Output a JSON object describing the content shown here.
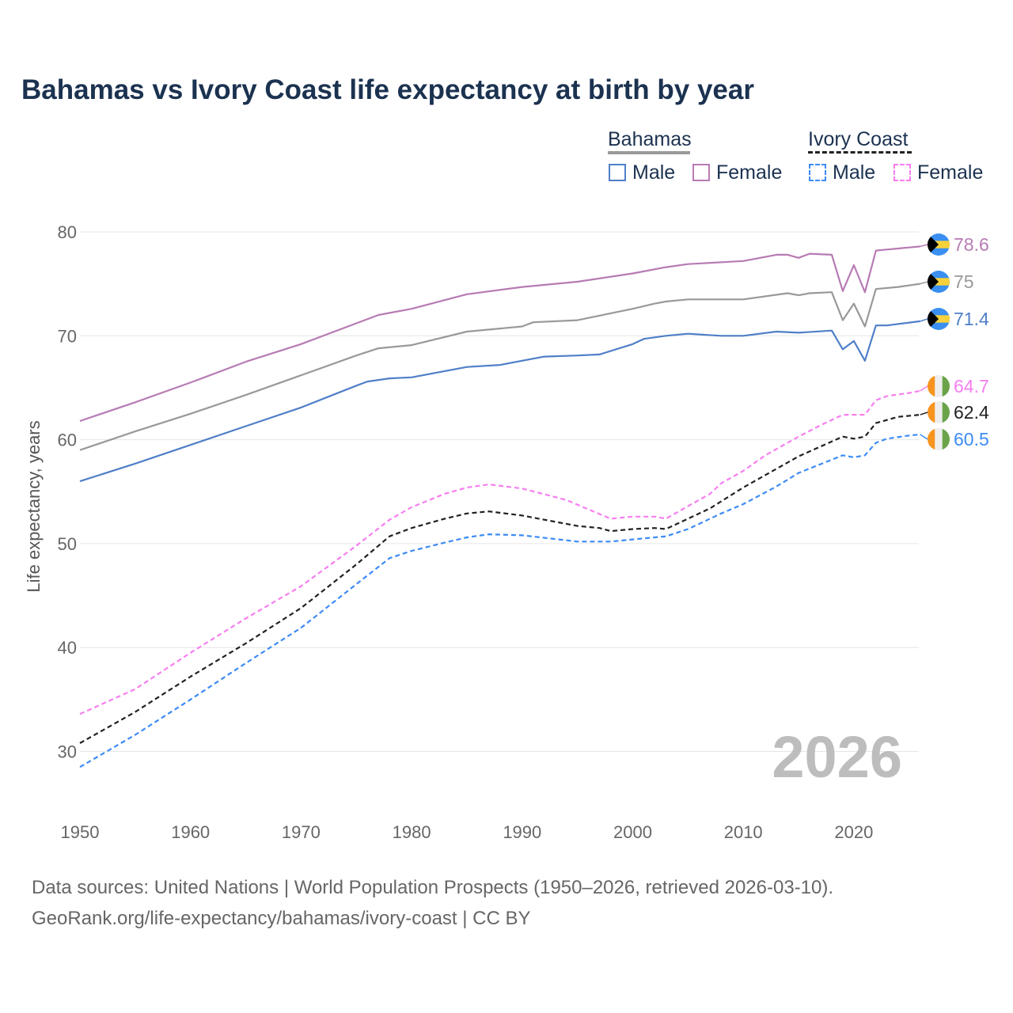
{
  "title": "Bahamas vs Ivory Coast life expectancy at birth by year",
  "legend": {
    "groups": [
      {
        "name": "Bahamas",
        "items": [
          "Male",
          "Female"
        ]
      },
      {
        "name": "Ivory Coast",
        "items": [
          "Male",
          "Female"
        ]
      }
    ]
  },
  "year_watermark": "2026",
  "footer": {
    "line1": "Data sources: United Nations | World Population Prospects (1950–2026, retrieved 2026-03-10).",
    "line2": "GeoRank.org/life-expectancy/bahamas/ivory-coast | CC BY"
  },
  "chart_data": {
    "type": "line",
    "title": "Bahamas vs Ivory Coast life expectancy at birth by year",
    "xlabel": "",
    "ylabel": "Life expectancy, years",
    "xlim": [
      1950,
      2026
    ],
    "ylim": [
      25,
      82
    ],
    "xticks": [
      1950,
      1960,
      1970,
      1980,
      1990,
      2000,
      2010,
      2020
    ],
    "yticks": [
      30,
      40,
      50,
      60,
      70,
      80
    ],
    "grid": true,
    "legend_position": "top-right",
    "series": [
      {
        "name": "Bahamas Female",
        "country": "Bahamas",
        "color": "#b77bb4",
        "dashed": false,
        "end_label": "78.6",
        "points": [
          [
            1950,
            61.8
          ],
          [
            1955,
            63.6
          ],
          [
            1960,
            65.5
          ],
          [
            1965,
            67.5
          ],
          [
            1970,
            69.2
          ],
          [
            1975,
            71.2
          ],
          [
            1977,
            72.0
          ],
          [
            1980,
            72.6
          ],
          [
            1985,
            74.0
          ],
          [
            1990,
            74.7
          ],
          [
            1995,
            75.2
          ],
          [
            2000,
            76.0
          ],
          [
            2003,
            76.6
          ],
          [
            2005,
            76.9
          ],
          [
            2010,
            77.2
          ],
          [
            2013,
            77.8
          ],
          [
            2014,
            77.8
          ],
          [
            2015,
            77.5
          ],
          [
            2016,
            77.9
          ],
          [
            2018,
            77.8
          ],
          [
            2019,
            74.3
          ],
          [
            2020,
            76.8
          ],
          [
            2021,
            74.2
          ],
          [
            2022,
            78.2
          ],
          [
            2023,
            78.3
          ],
          [
            2024,
            78.4
          ],
          [
            2025,
            78.5
          ],
          [
            2026,
            78.6
          ]
        ]
      },
      {
        "name": "Bahamas",
        "country": "Bahamas",
        "color": "#999999",
        "dashed": false,
        "end_label": "75",
        "points": [
          [
            1950,
            59.0
          ],
          [
            1955,
            60.8
          ],
          [
            1960,
            62.5
          ],
          [
            1965,
            64.3
          ],
          [
            1970,
            66.2
          ],
          [
            1975,
            68.1
          ],
          [
            1977,
            68.8
          ],
          [
            1980,
            69.1
          ],
          [
            1985,
            70.4
          ],
          [
            1990,
            70.9
          ],
          [
            1991,
            71.3
          ],
          [
            1995,
            71.5
          ],
          [
            2000,
            72.6
          ],
          [
            2002,
            73.1
          ],
          [
            2003,
            73.3
          ],
          [
            2005,
            73.5
          ],
          [
            2010,
            73.5
          ],
          [
            2014,
            74.1
          ],
          [
            2015,
            73.9
          ],
          [
            2016,
            74.1
          ],
          [
            2018,
            74.2
          ],
          [
            2019,
            71.5
          ],
          [
            2020,
            73.1
          ],
          [
            2021,
            70.9
          ],
          [
            2022,
            74.5
          ],
          [
            2024,
            74.7
          ],
          [
            2026,
            75.0
          ]
        ]
      },
      {
        "name": "Bahamas Male",
        "country": "Bahamas",
        "color": "#4f7fc8",
        "dashed": false,
        "end_label": "71.4",
        "points": [
          [
            1950,
            56.0
          ],
          [
            1955,
            57.7
          ],
          [
            1960,
            59.5
          ],
          [
            1965,
            61.3
          ],
          [
            1970,
            63.1
          ],
          [
            1975,
            65.2
          ],
          [
            1976,
            65.6
          ],
          [
            1978,
            65.9
          ],
          [
            1980,
            66.0
          ],
          [
            1985,
            67.0
          ],
          [
            1988,
            67.2
          ],
          [
            1990,
            67.6
          ],
          [
            1992,
            68.0
          ],
          [
            1995,
            68.1
          ],
          [
            1997,
            68.2
          ],
          [
            2000,
            69.2
          ],
          [
            2001,
            69.7
          ],
          [
            2003,
            70.0
          ],
          [
            2005,
            70.2
          ],
          [
            2008,
            70.0
          ],
          [
            2010,
            70.0
          ],
          [
            2013,
            70.4
          ],
          [
            2015,
            70.3
          ],
          [
            2018,
            70.5
          ],
          [
            2019,
            68.7
          ],
          [
            2020,
            69.5
          ],
          [
            2021,
            67.6
          ],
          [
            2022,
            71.0
          ],
          [
            2023,
            71.0
          ],
          [
            2026,
            71.4
          ]
        ]
      },
      {
        "name": "Ivory Coast Female",
        "country": "Ivory Coast",
        "color": "#f77ef0",
        "dashed": true,
        "end_label": "64.7",
        "points": [
          [
            1950,
            33.6
          ],
          [
            1955,
            36.0
          ],
          [
            1960,
            39.5
          ],
          [
            1965,
            42.8
          ],
          [
            1970,
            45.9
          ],
          [
            1975,
            49.8
          ],
          [
            1978,
            52.3
          ],
          [
            1980,
            53.5
          ],
          [
            1983,
            54.8
          ],
          [
            1985,
            55.4
          ],
          [
            1987,
            55.7
          ],
          [
            1990,
            55.3
          ],
          [
            1994,
            54.2
          ],
          [
            1996,
            53.3
          ],
          [
            1998,
            52.4
          ],
          [
            2000,
            52.6
          ],
          [
            2002,
            52.6
          ],
          [
            2003,
            52.4
          ],
          [
            2005,
            53.6
          ],
          [
            2007,
            54.8
          ],
          [
            2008,
            55.8
          ],
          [
            2010,
            57.0
          ],
          [
            2012,
            58.5
          ],
          [
            2015,
            60.3
          ],
          [
            2017,
            61.4
          ],
          [
            2019,
            62.4
          ],
          [
            2021,
            62.4
          ],
          [
            2022,
            63.8
          ],
          [
            2023,
            64.2
          ],
          [
            2025,
            64.5
          ],
          [
            2026,
            64.7
          ]
        ]
      },
      {
        "name": "Ivory Coast",
        "country": "Ivory Coast",
        "color": "#222222",
        "dashed": true,
        "end_label": "62.4",
        "points": [
          [
            1950,
            30.8
          ],
          [
            1955,
            33.8
          ],
          [
            1960,
            37.2
          ],
          [
            1965,
            40.4
          ],
          [
            1970,
            43.8
          ],
          [
            1975,
            48.0
          ],
          [
            1978,
            50.7
          ],
          [
            1980,
            51.5
          ],
          [
            1983,
            52.4
          ],
          [
            1985,
            52.9
          ],
          [
            1987,
            53.1
          ],
          [
            1990,
            52.7
          ],
          [
            1995,
            51.7
          ],
          [
            1997,
            51.5
          ],
          [
            1998,
            51.2
          ],
          [
            2000,
            51.4
          ],
          [
            2002,
            51.5
          ],
          [
            2003,
            51.4
          ],
          [
            2005,
            52.4
          ],
          [
            2007,
            53.4
          ],
          [
            2010,
            55.4
          ],
          [
            2013,
            57.2
          ],
          [
            2015,
            58.4
          ],
          [
            2019,
            60.3
          ],
          [
            2020,
            60.1
          ],
          [
            2021,
            60.3
          ],
          [
            2022,
            61.6
          ],
          [
            2024,
            62.2
          ],
          [
            2026,
            62.4
          ]
        ]
      },
      {
        "name": "Ivory Coast Male",
        "country": "Ivory Coast",
        "color": "#3d8bf5",
        "dashed": true,
        "end_label": "60.5",
        "points": [
          [
            1950,
            28.5
          ],
          [
            1955,
            31.6
          ],
          [
            1960,
            35.0
          ],
          [
            1965,
            38.5
          ],
          [
            1970,
            41.9
          ],
          [
            1975,
            46.1
          ],
          [
            1978,
            48.6
          ],
          [
            1980,
            49.3
          ],
          [
            1983,
            50.1
          ],
          [
            1985,
            50.6
          ],
          [
            1987,
            50.9
          ],
          [
            1990,
            50.8
          ],
          [
            1995,
            50.2
          ],
          [
            1998,
            50.2
          ],
          [
            2000,
            50.4
          ],
          [
            2002,
            50.6
          ],
          [
            2003,
            50.7
          ],
          [
            2005,
            51.4
          ],
          [
            2008,
            52.9
          ],
          [
            2010,
            53.8
          ],
          [
            2013,
            55.5
          ],
          [
            2015,
            56.8
          ],
          [
            2019,
            58.5
          ],
          [
            2020,
            58.3
          ],
          [
            2021,
            58.5
          ],
          [
            2022,
            59.7
          ],
          [
            2023,
            60.1
          ],
          [
            2025,
            60.4
          ],
          [
            2026,
            60.5
          ]
        ]
      }
    ]
  }
}
